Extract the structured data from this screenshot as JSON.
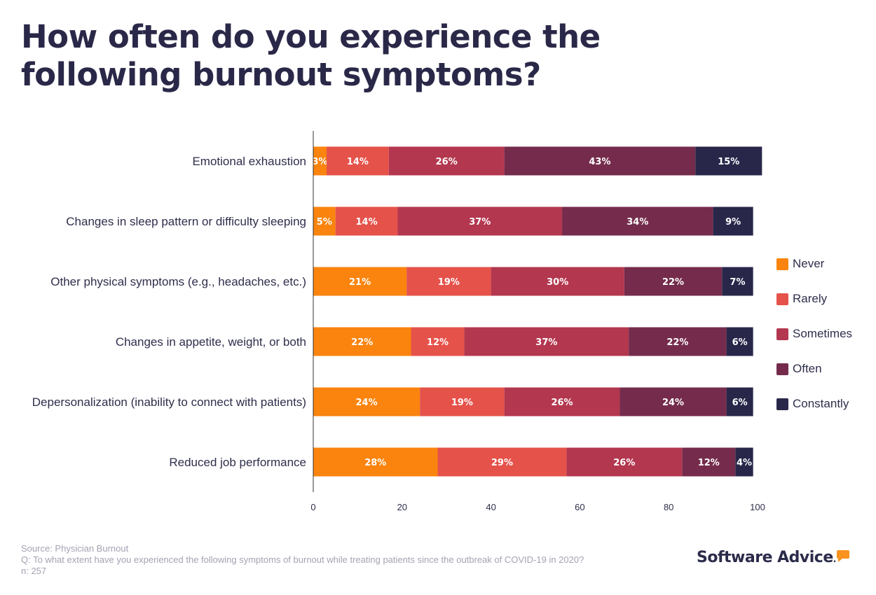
{
  "title": "How often do you experience the following burnout symptoms?",
  "chart_data": {
    "type": "bar",
    "orientation": "horizontal",
    "stacked": true,
    "categories": [
      "Emotional exhaustion",
      "Changes in sleep pattern or difficulty sleeping",
      "Other physical symptoms (e.g., headaches, etc.)",
      "Changes in appetite, weight, or both",
      "Depersonalization (inability to connect with patients)",
      "Reduced job performance"
    ],
    "series": [
      {
        "name": "Never",
        "color": "#fa840e",
        "values": [
          3,
          5,
          21,
          22,
          24,
          28
        ]
      },
      {
        "name": "Rarely",
        "color": "#e5524a",
        "values": [
          14,
          14,
          19,
          12,
          19,
          29
        ]
      },
      {
        "name": "Sometimes",
        "color": "#b3374f",
        "values": [
          26,
          37,
          30,
          37,
          26,
          26
        ]
      },
      {
        "name": "Often",
        "color": "#752c4c",
        "values": [
          43,
          34,
          22,
          22,
          24,
          12
        ]
      },
      {
        "name": "Constantly",
        "color": "#28274a",
        "values": [
          15,
          9,
          7,
          6,
          6,
          4
        ]
      }
    ],
    "xlim": [
      0,
      100
    ],
    "xticks": [
      "0",
      "20",
      "40",
      "60",
      "80",
      "100"
    ],
    "value_suffix": "%",
    "legend_position": "right"
  },
  "legend": [
    "Never",
    "Rarely",
    "Sometimes",
    "Often",
    "Constantly"
  ],
  "footer": {
    "source": "Source: Physician Burnout",
    "question": "Q: To what extent have you experienced the following symptoms of burnout while treating patients since the outbreak of COVID-19 in 2020?",
    "sample": "n: 257"
  },
  "brand": {
    "name": "Software Advice",
    "mark": "."
  }
}
